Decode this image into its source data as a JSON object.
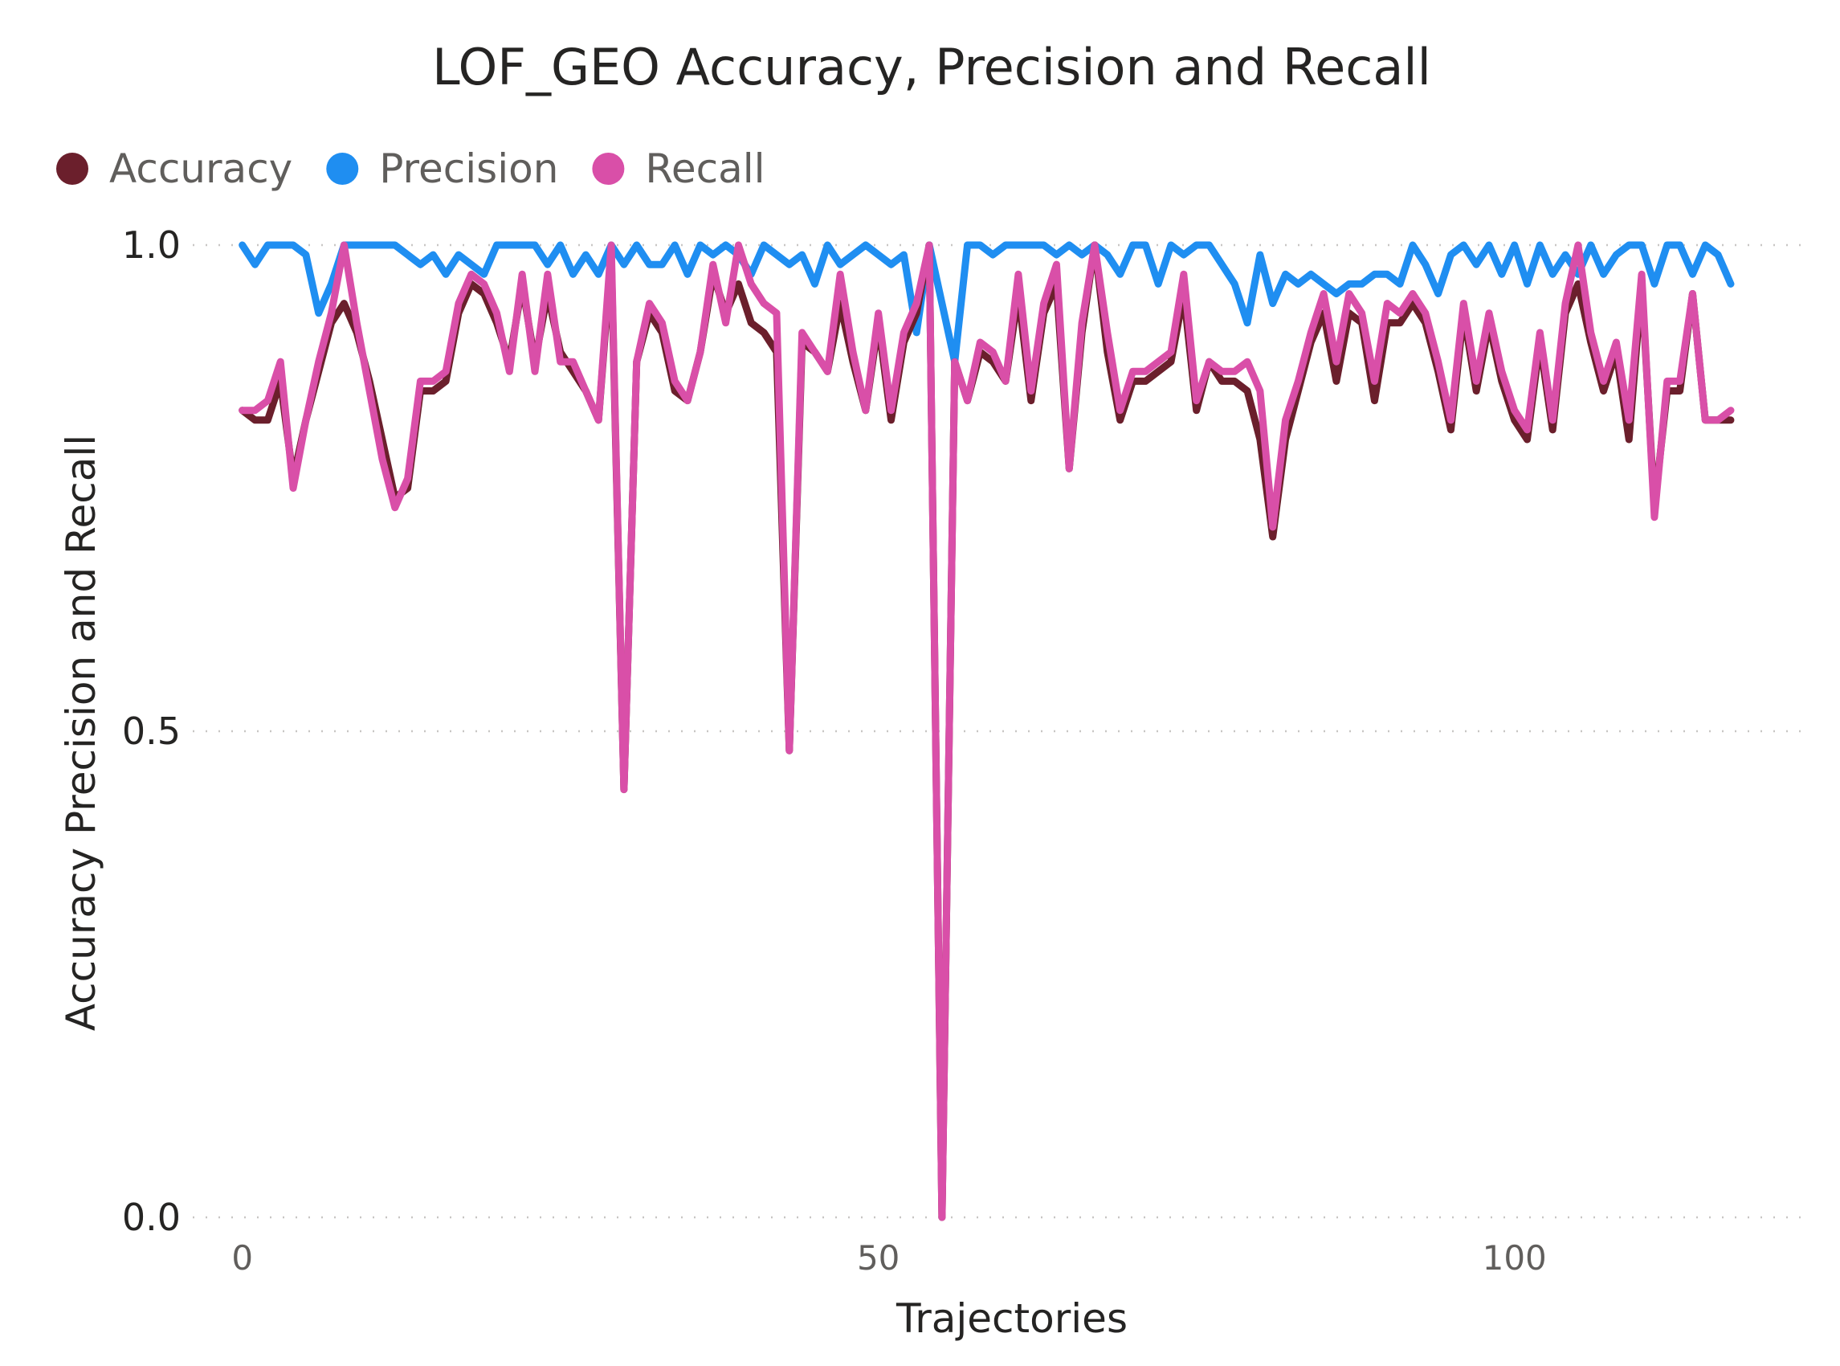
{
  "chart_data": {
    "type": "line",
    "title": "LOF_GEO Accuracy, Precision and Recall",
    "xlabel": "Trajectories",
    "ylabel": "Accuracy Precision and Recall",
    "xlim": [
      -2,
      123
    ],
    "ylim": [
      0,
      1
    ],
    "x_ticks": [
      {
        "value": 0,
        "label": "0"
      },
      {
        "value": 50,
        "label": "50"
      },
      {
        "value": 100,
        "label": "100"
      }
    ],
    "y_ticks": [
      {
        "value": 0,
        "label": "0.0"
      },
      {
        "value": 0.5,
        "label": "0.5"
      },
      {
        "value": 1,
        "label": "1.0"
      }
    ],
    "grid": "horizontal-dotted",
    "legend_position": "top-left",
    "series": [
      {
        "name": "Accuracy",
        "color": "#6b1f2c",
        "values": [
          0.83,
          0.82,
          0.82,
          0.86,
          0.76,
          0.82,
          0.87,
          0.92,
          0.94,
          0.91,
          0.86,
          0.8,
          0.74,
          0.75,
          0.85,
          0.85,
          0.86,
          0.93,
          0.96,
          0.95,
          0.92,
          0.88,
          0.96,
          0.88,
          0.95,
          0.89,
          0.87,
          0.85,
          0.82,
          0.99,
          0.44,
          0.88,
          0.93,
          0.91,
          0.85,
          0.84,
          0.89,
          0.97,
          0.93,
          0.96,
          0.92,
          0.91,
          0.89,
          0.48,
          0.9,
          0.89,
          0.87,
          0.94,
          0.88,
          0.83,
          0.92,
          0.82,
          0.9,
          0.93,
          1.0,
          0.0,
          0.88,
          0.84,
          0.89,
          0.88,
          0.86,
          0.95,
          0.84,
          0.93,
          0.96,
          0.77,
          0.91,
          1.0,
          0.89,
          0.82,
          0.86,
          0.86,
          0.87,
          0.88,
          0.95,
          0.83,
          0.88,
          0.86,
          0.86,
          0.85,
          0.8,
          0.7,
          0.8,
          0.85,
          0.9,
          0.93,
          0.86,
          0.93,
          0.92,
          0.84,
          0.92,
          0.92,
          0.94,
          0.92,
          0.87,
          0.81,
          0.93,
          0.85,
          0.92,
          0.86,
          0.82,
          0.8,
          0.9,
          0.81,
          0.93,
          0.96,
          0.9,
          0.85,
          0.89,
          0.8,
          0.96,
          0.73,
          0.85,
          0.85,
          0.95,
          0.82,
          0.82,
          0.82
        ]
      },
      {
        "name": "Precision",
        "color": "#1f8ef1",
        "values": [
          1.0,
          0.98,
          1.0,
          1.0,
          1.0,
          0.99,
          0.93,
          0.96,
          1.0,
          1.0,
          1.0,
          1.0,
          1.0,
          0.99,
          0.98,
          0.99,
          0.97,
          0.99,
          0.98,
          0.97,
          1.0,
          1.0,
          1.0,
          1.0,
          0.98,
          1.0,
          0.97,
          0.99,
          0.97,
          1.0,
          0.98,
          1.0,
          0.98,
          0.98,
          1.0,
          0.97,
          1.0,
          0.99,
          1.0,
          0.99,
          0.97,
          1.0,
          0.99,
          0.98,
          0.99,
          0.96,
          1.0,
          0.98,
          0.99,
          1.0,
          0.99,
          0.98,
          0.99,
          0.91,
          1.0,
          0.94,
          0.88,
          1.0,
          1.0,
          0.99,
          1.0,
          1.0,
          1.0,
          1.0,
          0.99,
          1.0,
          0.99,
          1.0,
          0.99,
          0.97,
          1.0,
          1.0,
          0.96,
          1.0,
          0.99,
          1.0,
          1.0,
          0.98,
          0.96,
          0.92,
          0.99,
          0.94,
          0.97,
          0.96,
          0.97,
          0.96,
          0.95,
          0.96,
          0.96,
          0.97,
          0.97,
          0.96,
          1.0,
          0.98,
          0.95,
          0.99,
          1.0,
          0.98,
          1.0,
          0.97,
          1.0,
          0.96,
          1.0,
          0.97,
          0.99,
          0.97,
          1.0,
          0.97,
          0.99,
          1.0,
          1.0,
          0.96,
          1.0,
          1.0,
          0.97,
          1.0,
          0.99,
          0.96
        ]
      },
      {
        "name": "Recall",
        "color": "#d94fa8",
        "values": [
          0.83,
          0.83,
          0.84,
          0.88,
          0.75,
          0.82,
          0.88,
          0.93,
          1.0,
          0.92,
          0.85,
          0.78,
          0.73,
          0.76,
          0.86,
          0.86,
          0.87,
          0.94,
          0.97,
          0.96,
          0.93,
          0.87,
          0.97,
          0.87,
          0.97,
          0.88,
          0.88,
          0.85,
          0.82,
          1.0,
          0.44,
          0.88,
          0.94,
          0.92,
          0.86,
          0.84,
          0.89,
          0.98,
          0.92,
          1.0,
          0.96,
          0.94,
          0.93,
          0.48,
          0.91,
          0.89,
          0.87,
          0.97,
          0.89,
          0.83,
          0.93,
          0.83,
          0.91,
          0.94,
          1.0,
          0.0,
          0.88,
          0.84,
          0.9,
          0.89,
          0.86,
          0.97,
          0.85,
          0.94,
          0.98,
          0.77,
          0.92,
          1.0,
          0.91,
          0.83,
          0.87,
          0.87,
          0.88,
          0.89,
          0.97,
          0.84,
          0.88,
          0.87,
          0.87,
          0.88,
          0.85,
          0.71,
          0.82,
          0.86,
          0.91,
          0.95,
          0.88,
          0.95,
          0.93,
          0.86,
          0.94,
          0.93,
          0.95,
          0.93,
          0.88,
          0.82,
          0.94,
          0.86,
          0.93,
          0.87,
          0.83,
          0.81,
          0.91,
          0.82,
          0.94,
          1.0,
          0.91,
          0.86,
          0.9,
          0.82,
          0.97,
          0.72,
          0.86,
          0.86,
          0.95,
          0.82,
          0.82,
          0.83
        ]
      }
    ]
  }
}
